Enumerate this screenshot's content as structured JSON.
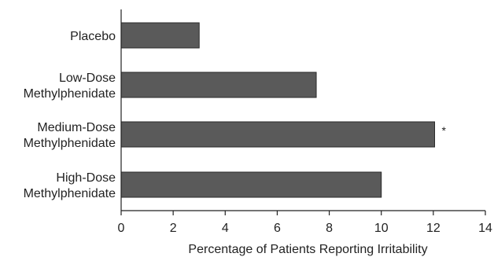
{
  "chart_data": {
    "type": "bar",
    "orientation": "horizontal",
    "categories": [
      [
        "Placebo"
      ],
      [
        "Low-Dose",
        "Methylphenidate"
      ],
      [
        "Medium-Dose",
        "Methylphenidate"
      ],
      [
        "High-Dose",
        "Methylphenidate"
      ]
    ],
    "values": [
      3.0,
      7.5,
      12.05,
      10.0
    ],
    "annotations": [
      "",
      "",
      "*",
      ""
    ],
    "xlabel": "Percentage of Patients Reporting Irritability",
    "xlim": [
      0,
      14
    ],
    "xticks": [
      0,
      2,
      4,
      6,
      8,
      10,
      12,
      14
    ],
    "grid": false,
    "colors": {
      "bar": "#5a5a5a",
      "axis": "#222222"
    }
  }
}
